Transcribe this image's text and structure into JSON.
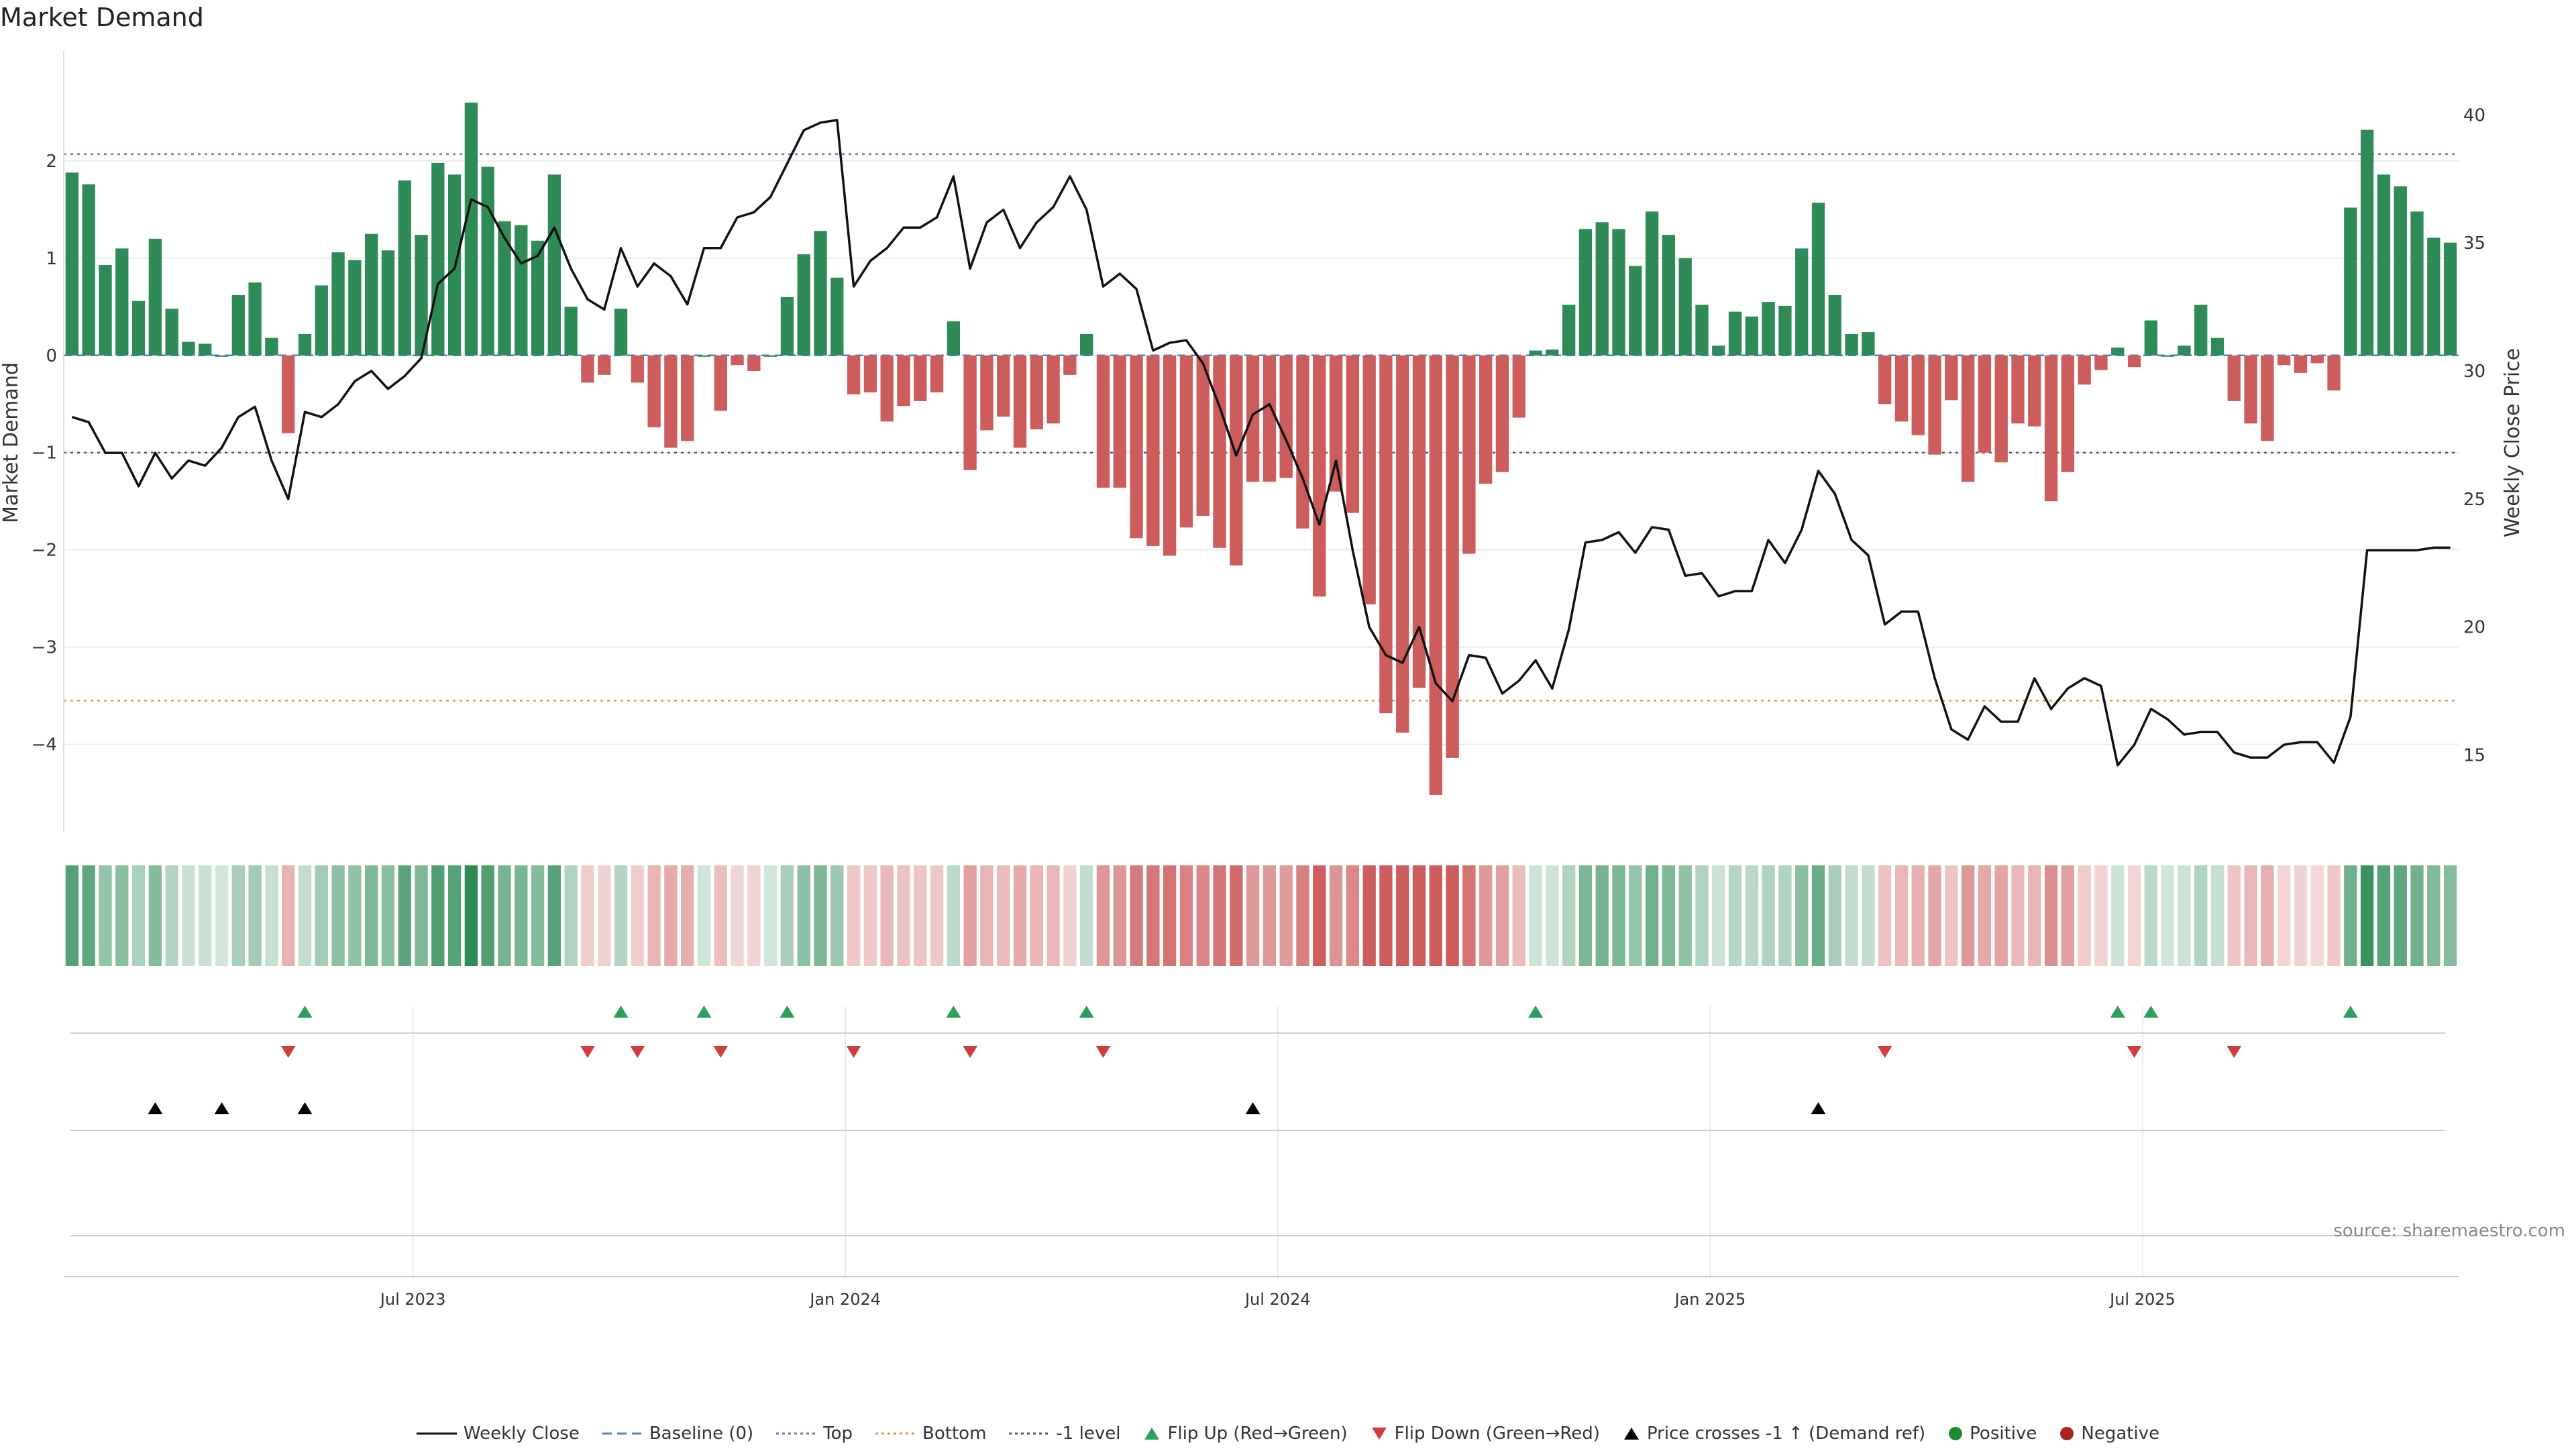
{
  "chart_data": {
    "type": "bar",
    "title": "Market Demand",
    "ylabel": "Market Demand",
    "y2label": "Weekly Close Price",
    "ylim": [
      -4.9,
      3.0
    ],
    "y2lim": [
      12.0,
      42.0
    ],
    "yticks": [
      2,
      1,
      0,
      -1,
      -2,
      -3,
      -4
    ],
    "y2ticks": [
      40,
      35,
      30,
      25,
      20,
      15
    ],
    "x_tick_labels": [
      {
        "label": "Jul 2023",
        "week": 21
      },
      {
        "label": "Jan 2024",
        "week": 47
      },
      {
        "label": "Jul 2024",
        "week": 73
      },
      {
        "label": "Jan 2025",
        "week": 99
      },
      {
        "label": "Jul 2025",
        "week": 125
      }
    ],
    "reference_lines": [
      {
        "name": "Top",
        "value": 2.07,
        "color": "#7b6fc9"
      },
      {
        "name": "Bottom",
        "value": -3.55,
        "color": "#e39a3a"
      },
      {
        "name": "-1 level",
        "value": -1.0,
        "color": "#555577"
      },
      {
        "name": "Baseline (0)",
        "value": 0.0,
        "color": "#4a86c5"
      }
    ],
    "series": [
      {
        "name": "Market Demand",
        "values": [
          1.88,
          1.76,
          0.93,
          1.1,
          0.56,
          1.2,
          0.48,
          0.14,
          0.12,
          0.0,
          0.62,
          0.75,
          0.18,
          -0.8,
          0.22,
          0.72,
          1.06,
          0.98,
          1.25,
          1.08,
          1.8,
          1.24,
          1.98,
          1.86,
          2.6,
          1.94,
          1.38,
          1.34,
          1.18,
          1.86,
          0.5,
          -0.28,
          -0.2,
          0.48,
          -0.28,
          -0.74,
          -0.95,
          -0.88,
          0.0,
          -0.57,
          -0.1,
          -0.16,
          0.0,
          0.6,
          1.04,
          1.28,
          0.8,
          -0.4,
          -0.38,
          -0.68,
          -0.52,
          -0.47,
          -0.38,
          0.35,
          -1.18,
          -0.77,
          -0.63,
          -0.95,
          -0.76,
          -0.7,
          -0.2,
          0.22,
          -1.36,
          -1.36,
          -1.88,
          -1.96,
          -2.06,
          -1.77,
          -1.65,
          -1.98,
          -2.16,
          -1.3,
          -1.3,
          -1.26,
          -1.78,
          -2.48,
          -1.4,
          -1.62,
          -2.56,
          -3.68,
          -3.88,
          -3.42,
          -4.52,
          -4.14,
          -2.04,
          -1.32,
          -1.2,
          -0.64,
          0.05,
          0.06,
          0.52,
          1.3,
          1.37,
          1.3,
          0.92,
          1.48,
          1.24,
          1.0,
          0.52,
          0.1,
          0.45,
          0.4,
          0.55,
          0.51,
          1.1,
          1.57,
          0.62,
          0.22,
          0.24,
          -0.5,
          -0.68,
          -0.82,
          -1.02,
          -0.46,
          -1.3,
          -1.0,
          -1.1,
          -0.7,
          -0.73,
          -1.5,
          -1.2,
          -0.3,
          -0.15,
          0.08,
          -0.12,
          0.36,
          0.0,
          0.1,
          0.52,
          0.18,
          -0.47,
          -0.7,
          -0.88,
          -0.1,
          -0.18,
          -0.08,
          -0.36,
          1.52,
          2.32,
          1.86,
          1.74,
          1.48,
          1.21,
          1.16
        ]
      },
      {
        "name": "Weekly Close",
        "values": [
          28.2,
          28.0,
          26.8,
          26.8,
          25.5,
          26.8,
          25.8,
          26.5,
          26.3,
          27.0,
          28.2,
          28.6,
          26.5,
          25.0,
          28.4,
          28.2,
          28.7,
          29.6,
          30.0,
          29.3,
          29.8,
          30.5,
          33.4,
          34.0,
          36.7,
          36.4,
          35.2,
          34.2,
          34.5,
          35.6,
          34.0,
          32.8,
          32.4,
          34.8,
          33.3,
          34.2,
          33.7,
          32.6,
          34.8,
          34.8,
          36.0,
          36.2,
          36.8,
          38.1,
          39.4,
          39.7,
          39.8,
          33.3,
          34.3,
          34.8,
          35.6,
          35.6,
          36.0,
          37.6,
          34.0,
          35.8,
          36.3,
          34.8,
          35.8,
          36.4,
          37.6,
          36.3,
          33.3,
          33.8,
          33.2,
          30.8,
          31.1,
          31.2,
          30.3,
          28.6,
          26.7,
          28.3,
          28.7,
          27.3,
          25.8,
          24.0,
          26.5,
          23.0,
          20.0,
          18.9,
          18.6,
          20.0,
          17.8,
          17.1,
          18.9,
          18.8,
          17.4,
          17.9,
          18.7,
          17.6,
          19.9,
          23.3,
          23.4,
          23.7,
          22.9,
          23.9,
          23.8,
          22.0,
          22.1,
          21.2,
          21.4,
          21.4,
          23.4,
          22.5,
          23.8,
          26.1,
          25.2,
          23.4,
          22.8,
          20.1,
          20.6,
          20.6,
          18.0,
          16.0,
          15.6,
          16.9,
          16.3,
          16.3,
          18.0,
          16.8,
          17.6,
          18.0,
          17.7,
          14.6,
          15.4,
          16.8,
          16.4,
          15.8,
          15.9,
          15.9,
          15.1,
          14.9,
          14.9,
          15.4,
          15.5,
          15.5,
          14.7,
          16.5,
          23.0,
          23.0,
          23.0,
          23.0,
          23.1,
          23.1
        ]
      }
    ],
    "flip_up_weeks": [
      14,
      33,
      38,
      43,
      53,
      61,
      88,
      123,
      125,
      137
    ],
    "flip_down_weeks": [
      13,
      31,
      34,
      39,
      47,
      54,
      62,
      109,
      124,
      130
    ],
    "price_cross_weeks": [
      5,
      9,
      14,
      71,
      105
    ],
    "legend": [
      "Weekly Close",
      "Baseline (0)",
      "Top",
      "Bottom",
      "-1 level",
      "Flip Up (Red→Green)",
      "Flip Down (Green→Red)",
      "Price crosses -1 ↑ (Demand ref)",
      "Positive",
      "Negative"
    ],
    "legend_placement": "bottom",
    "colors": {
      "positive": "#2e8b57",
      "negative": "#cd5c5c",
      "price": "#111111",
      "flip_up": "#2aa05a",
      "flip_down": "#d23c3c",
      "cross": "#000000",
      "legend_positive": "#1f8a2e",
      "legend_negative": "#a82222",
      "grid": "#e6e6e6"
    }
  },
  "source": "source: sharemaestro.com"
}
